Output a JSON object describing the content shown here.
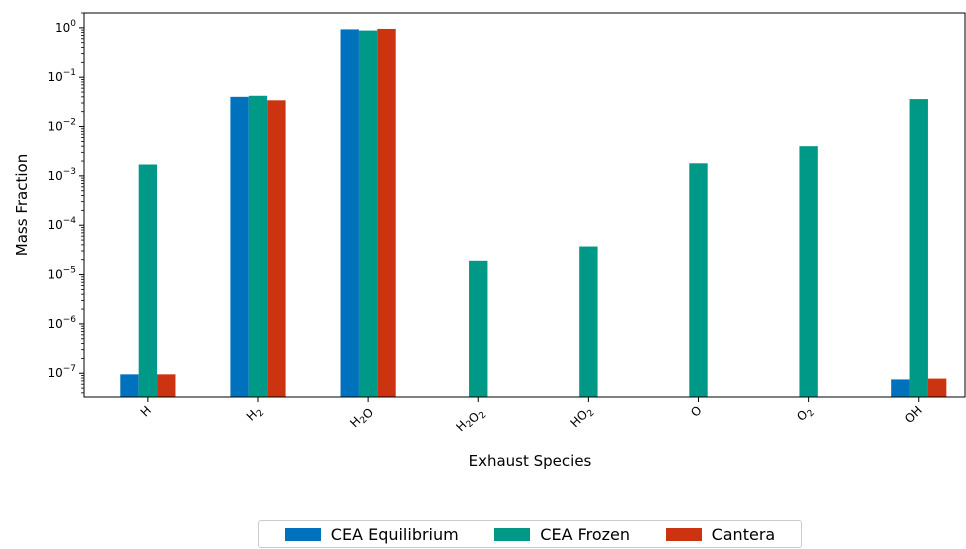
{
  "chart_data": {
    "type": "bar",
    "ylabel": "Mass Fraction",
    "xlabel": "Exhaust Species",
    "yscale": "log",
    "ylim": [
      3.3e-08,
      2.0
    ],
    "y_ticks": [
      {
        "value": 1e-07,
        "base": "10",
        "exp": "−7"
      },
      {
        "value": 1e-06,
        "base": "10",
        "exp": "−6"
      },
      {
        "value": 1e-05,
        "base": "10",
        "exp": "−5"
      },
      {
        "value": 0.0001,
        "base": "10",
        "exp": "−4"
      },
      {
        "value": 0.001,
        "base": "10",
        "exp": "−3"
      },
      {
        "value": 0.01,
        "base": "10",
        "exp": "−2"
      },
      {
        "value": 0.1,
        "base": "10",
        "exp": "−1"
      },
      {
        "value": 1,
        "base": "10",
        "exp": "0"
      }
    ],
    "categories": [
      {
        "base": "H",
        "sub": "",
        "tail": ""
      },
      {
        "base": "H",
        "sub": "2",
        "tail": ""
      },
      {
        "base": "H",
        "sub": "2",
        "tail": "O"
      },
      {
        "base": "H",
        "sub": "2",
        "tail": "O",
        "sub2": "2"
      },
      {
        "base": "HO",
        "sub": "2",
        "tail": ""
      },
      {
        "base": "O",
        "sub": "",
        "tail": ""
      },
      {
        "base": "O",
        "sub": "2",
        "tail": ""
      },
      {
        "base": "OH",
        "sub": "",
        "tail": ""
      }
    ],
    "series": [
      {
        "name": "CEA Equilibrium",
        "color": "#0072bd",
        "values": [
          9.5e-08,
          0.04,
          0.93,
          null,
          null,
          null,
          null,
          7.5e-08
        ]
      },
      {
        "name": "CEA Frozen",
        "color": "#009988",
        "values": [
          0.0017,
          0.042,
          0.88,
          1.9e-05,
          3.7e-05,
          0.0018,
          0.004,
          0.036
        ]
      },
      {
        "name": "Cantera",
        "color": "#cc3311",
        "values": [
          9.5e-08,
          0.034,
          0.95,
          null,
          null,
          null,
          null,
          7.8e-08
        ]
      }
    ],
    "legend_position": "below"
  }
}
